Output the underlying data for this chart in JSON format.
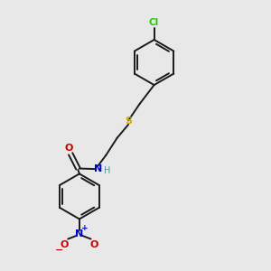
{
  "bg_color": "#e8e8e8",
  "bond_color": "#1a1a1a",
  "cl_color": "#22cc00",
  "s_color": "#ccaa00",
  "n_color": "#0000cc",
  "o_color": "#cc0000",
  "h_color": "#4a9a9a",
  "fig_size": [
    3.0,
    3.0
  ],
  "dpi": 100,
  "xlim": [
    0,
    10
  ],
  "ylim": [
    0,
    10
  ]
}
